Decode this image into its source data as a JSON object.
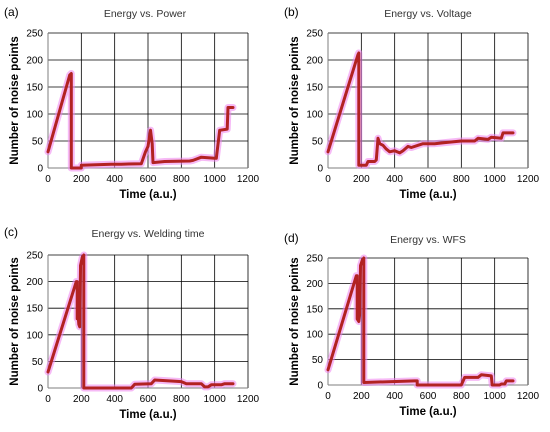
{
  "figure": {
    "panels": [
      {
        "label": "(a)",
        "title": "Energy vs. Power"
      },
      {
        "label": "(b)",
        "title": "Energy vs. Voltage"
      },
      {
        "label": "(c)",
        "title": "Energy vs. Welding time"
      },
      {
        "label": "(d)",
        "title": "Energy vs. WFS"
      }
    ]
  },
  "colors": {
    "series": "#b22222",
    "halo": "#ee82ee",
    "grid": "#000000",
    "axis": "#7f7f7f"
  },
  "chart_data": [
    {
      "type": "line",
      "title": "Energy vs. Power",
      "panel_label": "(a)",
      "xlabel": "Time (a.u.)",
      "ylabel": "Number of noise points",
      "xlim": [
        0,
        1200
      ],
      "ylim": [
        0,
        250
      ],
      "xticks": [
        0,
        200,
        400,
        600,
        800,
        1000,
        1200
      ],
      "yticks": [
        0,
        50,
        100,
        150,
        200,
        250
      ],
      "grid": true,
      "x": [
        0,
        130,
        140,
        140,
        200,
        200,
        380,
        440,
        560,
        585,
        600,
        615,
        625,
        630,
        630,
        700,
        850,
        870,
        920,
        1000,
        1010,
        1030,
        1035,
        1075,
        1080,
        1110
      ],
      "y": [
        30,
        172,
        175,
        0,
        0,
        5,
        7,
        7,
        8,
        30,
        40,
        70,
        45,
        10,
        10,
        12,
        13,
        14,
        20,
        18,
        18,
        70,
        70,
        72,
        112,
        112
      ]
    },
    {
      "type": "line",
      "title": "Energy vs. Voltage",
      "panel_label": "(b)",
      "xlabel": "Time (a.u.)",
      "ylabel": "Number of noise points",
      "xlim": [
        0,
        1200
      ],
      "ylim": [
        0,
        250
      ],
      "xticks": [
        0,
        200,
        400,
        600,
        800,
        1000,
        1200
      ],
      "yticks": [
        0,
        50,
        100,
        150,
        200,
        250
      ],
      "grid": true,
      "x": [
        0,
        180,
        185,
        185,
        230,
        240,
        280,
        290,
        300,
        310,
        330,
        350,
        370,
        400,
        430,
        450,
        480,
        500,
        540,
        570,
        600,
        640,
        700,
        800,
        880,
        900,
        960,
        980,
        1040,
        1050,
        1110
      ],
      "y": [
        30,
        210,
        213,
        5,
        5,
        12,
        12,
        15,
        55,
        45,
        42,
        35,
        30,
        32,
        28,
        32,
        40,
        38,
        42,
        45,
        45,
        45,
        47,
        50,
        50,
        55,
        53,
        57,
        55,
        65,
        65
      ]
    },
    {
      "type": "line",
      "title": "Energy vs. Welding time",
      "panel_label": "(c)",
      "xlabel": "Time (a.u.)",
      "ylabel": "Number of noise points",
      "xlim": [
        0,
        1200
      ],
      "ylim": [
        0,
        250
      ],
      "xticks": [
        0,
        200,
        400,
        600,
        800,
        1000,
        1200
      ],
      "yticks": [
        0,
        50,
        100,
        150,
        200,
        250
      ],
      "grid": true,
      "x": [
        0,
        170,
        175,
        175,
        180,
        185,
        190,
        195,
        195,
        205,
        215,
        215,
        500,
        520,
        620,
        640,
        800,
        830,
        920,
        940,
        960,
        980,
        1040,
        1060,
        1110
      ],
      "y": [
        30,
        200,
        200,
        130,
        140,
        120,
        115,
        225,
        230,
        245,
        250,
        0,
        0,
        7,
        8,
        15,
        12,
        8,
        8,
        2,
        2,
        6,
        6,
        8,
        8
      ]
    },
    {
      "type": "line",
      "title": "Energy vs. WFS",
      "panel_label": "(d)",
      "xlabel": "Time (a.u.)",
      "ylabel": "Number of noise points",
      "xlim": [
        0,
        1200
      ],
      "ylim": [
        0,
        250
      ],
      "xticks": [
        0,
        200,
        400,
        600,
        800,
        1000,
        1200
      ],
      "yticks": [
        0,
        50,
        100,
        150,
        200,
        250
      ],
      "grid": true,
      "x": [
        0,
        170,
        175,
        175,
        185,
        190,
        195,
        205,
        215,
        215,
        520,
        535,
        535,
        800,
        820,
        900,
        920,
        980,
        985,
        1030,
        1040,
        1060,
        1070,
        1110
      ],
      "y": [
        30,
        215,
        215,
        130,
        125,
        140,
        235,
        245,
        250,
        5,
        8,
        8,
        0,
        0,
        15,
        15,
        20,
        18,
        0,
        0,
        2,
        2,
        8,
        8
      ]
    }
  ]
}
